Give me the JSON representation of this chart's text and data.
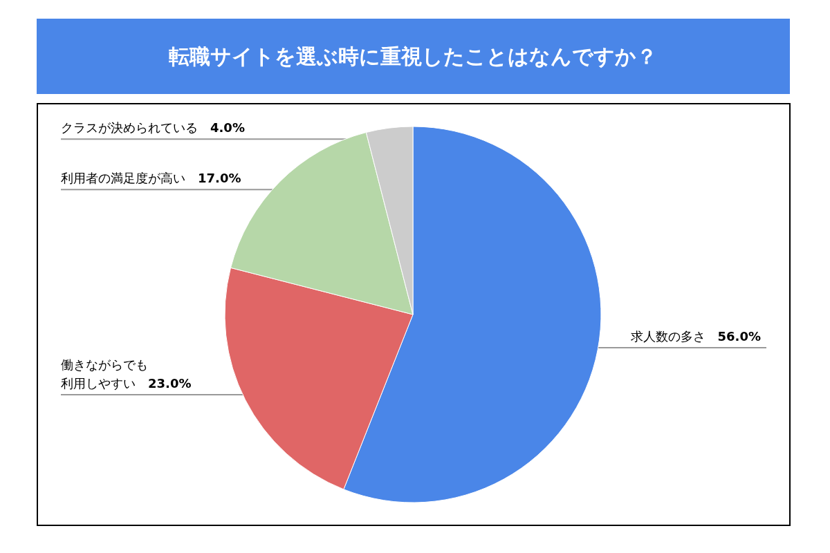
{
  "chart_data": {
    "type": "pie",
    "title": "転職サイトを選ぶ時に重視したことはなんですか？",
    "categories": [
      "求人数の多さ",
      "働きながらでも利用しやすい",
      "利用者の満足度が高い",
      "クラスが決められている"
    ],
    "values": [
      56.0,
      23.0,
      17.0,
      4.0
    ],
    "value_labels": [
      "56.0%",
      "23.0%",
      "17.0%",
      "4.0%"
    ],
    "colors": [
      "#4a86e8",
      "#e06666",
      "#b6d7a8",
      "#cccccc"
    ]
  }
}
